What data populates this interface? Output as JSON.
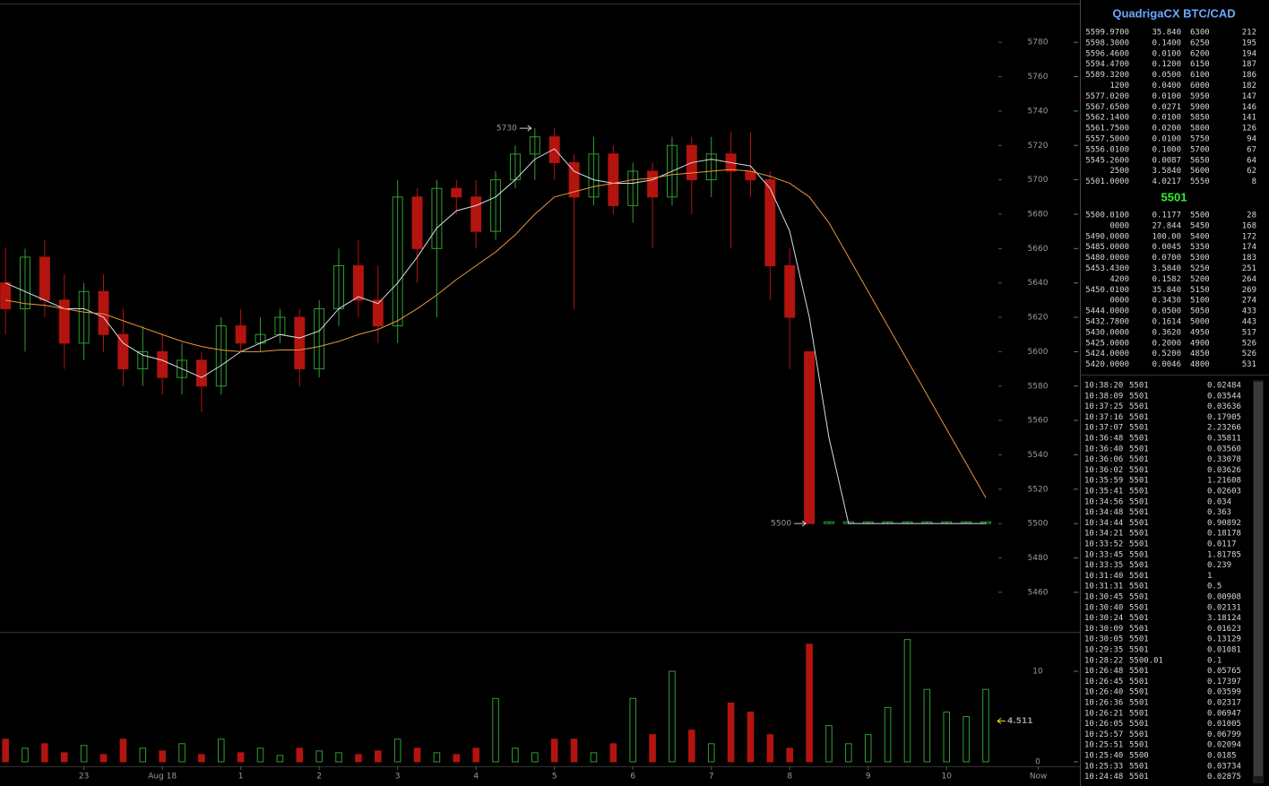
{
  "chart_data": [
    {
      "type": "candlestick",
      "x": [
        -2,
        -1.75,
        -1.5,
        -1.25,
        -1,
        -0.75,
        -0.5,
        -0.25,
        0,
        0.25,
        0.5,
        0.75,
        1,
        1.25,
        1.5,
        1.75,
        2,
        2.25,
        2.5,
        2.75,
        3,
        3.25,
        3.5,
        3.75,
        4,
        4.25,
        4.5,
        4.75,
        5,
        5.25,
        5.5,
        5.75,
        6,
        6.25,
        6.5,
        6.75,
        7,
        7.25,
        7.5,
        7.75,
        8,
        8.25,
        8.5,
        8.75,
        9,
        9.25,
        9.5,
        9.75,
        10,
        10.25,
        10.5
      ],
      "open": [
        5640,
        5625,
        5655,
        5630,
        5605,
        5635,
        5610,
        5590,
        5600,
        5585,
        5595,
        5580,
        5615,
        5605,
        5610,
        5620,
        5590,
        5625,
        5650,
        5630,
        5615,
        5690,
        5660,
        5695,
        5690,
        5670,
        5700,
        5715,
        5725,
        5710,
        5690,
        5715,
        5685,
        5705,
        5690,
        5720,
        5700,
        5715,
        5705,
        5700,
        5650,
        5600,
        5500,
        5500,
        5500,
        5500,
        5500,
        5500,
        5500,
        5500,
        5500
      ],
      "high": [
        5660,
        5660,
        5665,
        5645,
        5640,
        5645,
        5625,
        5615,
        5610,
        5605,
        5600,
        5620,
        5625,
        5620,
        5625,
        5625,
        5630,
        5660,
        5665,
        5650,
        5700,
        5695,
        5700,
        5700,
        5700,
        5705,
        5720,
        5730,
        5730,
        5715,
        5725,
        5720,
        5710,
        5710,
        5725,
        5725,
        5725,
        5728,
        5728,
        5705,
        5660,
        5600,
        5501,
        5501,
        5501,
        5501,
        5501,
        5501,
        5501,
        5501,
        5501
      ],
      "low": [
        5610,
        5600,
        5620,
        5590,
        5595,
        5600,
        5580,
        5580,
        5575,
        5575,
        5565,
        5575,
        5600,
        5600,
        5605,
        5580,
        5585,
        5615,
        5620,
        5605,
        5605,
        5640,
        5620,
        5680,
        5660,
        5665,
        5695,
        5700,
        5700,
        5625,
        5685,
        5680,
        5675,
        5660,
        5685,
        5680,
        5690,
        5660,
        5690,
        5630,
        5590,
        5500,
        5500,
        5500,
        5500,
        5500,
        5500,
        5500,
        5500,
        5500,
        5500
      ],
      "close": [
        5625,
        5655,
        5630,
        5605,
        5635,
        5610,
        5590,
        5600,
        5585,
        5595,
        5580,
        5615,
        5605,
        5610,
        5620,
        5590,
        5625,
        5650,
        5630,
        5615,
        5690,
        5660,
        5695,
        5690,
        5670,
        5700,
        5715,
        5725,
        5710,
        5690,
        5715,
        5685,
        5705,
        5690,
        5720,
        5700,
        5715,
        5705,
        5700,
        5650,
        5620,
        5500,
        5501,
        5501,
        5501,
        5501,
        5501,
        5501,
        5501,
        5501,
        5501
      ],
      "up_color": "#2f9e2f",
      "down_color": "#b3140f",
      "lines": [
        {
          "color": "#d6dde8",
          "values": [
            5640,
            5635,
            5630,
            5625,
            5625,
            5620,
            5605,
            5598,
            5595,
            5590,
            5585,
            5592,
            5600,
            5605,
            5610,
            5608,
            5612,
            5625,
            5632,
            5628,
            5640,
            5655,
            5672,
            5682,
            5685,
            5690,
            5700,
            5712,
            5718,
            5705,
            5700,
            5698,
            5698,
            5700,
            5705,
            5710,
            5712,
            5710,
            5708,
            5695,
            5670,
            5620,
            5550,
            5500,
            5500,
            5500,
            5500,
            5500,
            5500,
            5500,
            5500
          ]
        },
        {
          "color": "#e8963a",
          "values": [
            5630,
            5628,
            5627,
            5625,
            5623,
            5622,
            5618,
            5614,
            5610,
            5606,
            5603,
            5601,
            5600,
            5600,
            5601,
            5601,
            5603,
            5606,
            5610,
            5613,
            5618,
            5625,
            5633,
            5642,
            5650,
            5658,
            5668,
            5680,
            5690,
            5693,
            5696,
            5698,
            5700,
            5701,
            5703,
            5704,
            5705,
            5706,
            5705,
            5702,
            5698,
            5690,
            5675,
            5655,
            5635,
            5615,
            5595,
            5575,
            5555,
            5535,
            5515
          ]
        }
      ],
      "annotations": [
        {
          "x": 4.75,
          "value": 5730
        },
        {
          "x": 8.25,
          "value": 5500
        }
      ],
      "xlim": [
        -2.07,
        11.7
      ],
      "ylim": [
        5437,
        5802
      ],
      "yticks": [
        5460,
        5480,
        5500,
        5520,
        5540,
        5560,
        5580,
        5600,
        5620,
        5640,
        5660,
        5680,
        5700,
        5720,
        5740,
        5760,
        5780
      ],
      "xticks": [
        {
          "value": -1,
          "label": "23"
        },
        {
          "value": 0,
          "label": "Aug 18"
        },
        1,
        2,
        3,
        4,
        5,
        6,
        7,
        8,
        9,
        10,
        {
          "value": 11.17,
          "label": "Now"
        }
      ]
    },
    {
      "type": "bar",
      "x": [
        -2,
        -1.75,
        -1.5,
        -1.25,
        -1,
        -0.75,
        -0.5,
        -0.25,
        0,
        0.25,
        0.5,
        0.75,
        1,
        1.25,
        1.5,
        1.75,
        2,
        2.25,
        2.5,
        2.75,
        3,
        3.25,
        3.5,
        3.75,
        4,
        4.25,
        4.5,
        4.75,
        5,
        5.25,
        5.5,
        5.75,
        6,
        6.25,
        6.5,
        6.75,
        7,
        7.25,
        7.5,
        7.75,
        8,
        8.25,
        8.5,
        8.75,
        9,
        9.25,
        9.5,
        9.75,
        10,
        10.25,
        10.5
      ],
      "values": [
        2.5,
        1.5,
        2,
        1,
        1.8,
        0.8,
        2.5,
        1.5,
        1.2,
        2,
        0.8,
        2.5,
        1,
        1.5,
        0.7,
        1.5,
        1.2,
        1,
        0.8,
        1.2,
        2.5,
        1.5,
        1,
        0.8,
        1.5,
        7,
        1.5,
        1,
        2.5,
        2.5,
        1,
        2,
        7,
        3,
        10,
        3.5,
        2,
        6.5,
        5.5,
        3,
        1.5,
        13,
        4,
        2,
        3,
        6,
        13.5,
        8,
        5.5,
        5,
        8
      ],
      "current": 4.511,
      "current_color": "#e6d31a",
      "xlim": [
        -2.07,
        11.7
      ],
      "ylim": [
        0,
        14.06
      ],
      "yticks": [
        0,
        10
      ]
    }
  ],
  "order_book": {
    "title": "QuadrigaCX BTC/CAD",
    "asks": [
      [
        "5599.9700",
        "35.840",
        "6300",
        "212"
      ],
      [
        "5598.3000",
        "0.1400",
        "6250",
        "195"
      ],
      [
        "5596.4600",
        "0.0100",
        "6200",
        "194"
      ],
      [
        "5594.4700",
        "0.1200",
        "6150",
        "187"
      ],
      [
        "5589.3200",
        "0.0500",
        "6100",
        "186"
      ],
      [
        "1200",
        "0.0400",
        "6000",
        "182"
      ],
      [
        "5577.0200",
        "0.0100",
        "5950",
        "147"
      ],
      [
        "5567.6500",
        "0.0271",
        "5900",
        "146"
      ],
      [
        "5562.1400",
        "0.0100",
        "5850",
        "141"
      ],
      [
        "5561.7500",
        "0.0200",
        "5800",
        "126"
      ],
      [
        "5557.5000",
        "0.0100",
        "5750",
        "94"
      ],
      [
        "5556.0100",
        "0.1000",
        "5700",
        "67"
      ],
      [
        "5545.2600",
        "0.0087",
        "5650",
        "64"
      ],
      [
        "2500",
        "3.5840",
        "5600",
        "62"
      ],
      [
        "5501.0000",
        "4.0217",
        "5550",
        "8"
      ]
    ],
    "last": "5501",
    "bids": [
      [
        "5500.0100",
        "0.1177",
        "5500",
        "28"
      ],
      [
        "0000",
        "27.844",
        "5450",
        "168"
      ],
      [
        "5490.0000",
        "100.00",
        "5400",
        "172"
      ],
      [
        "5485.0000",
        "0.0045",
        "5350",
        "174"
      ],
      [
        "5480.0000",
        "0.0700",
        "5300",
        "183"
      ],
      [
        "5453.4300",
        "3.5840",
        "5250",
        "251"
      ],
      [
        "4200",
        "0.1582",
        "5200",
        "264"
      ],
      [
        "5450.0100",
        "35.840",
        "5150",
        "269"
      ],
      [
        "0000",
        "0.3430",
        "5100",
        "274"
      ],
      [
        "5444.0000",
        "0.0500",
        "5050",
        "433"
      ],
      [
        "5432.7800",
        "0.1614",
        "5000",
        "443"
      ],
      [
        "5430.0000",
        "0.3620",
        "4950",
        "517"
      ],
      [
        "5425.0000",
        "0.2000",
        "4900",
        "526"
      ],
      [
        "5424.0000",
        "0.5200",
        "4850",
        "526"
      ],
      [
        "5420.0000",
        "0.0046",
        "4800",
        "531"
      ]
    ]
  },
  "trades": {
    "rows": [
      [
        "10:38:20",
        "5501",
        "0.02484"
      ],
      [
        "10:38:09",
        "5501",
        "0.03544"
      ],
      [
        "10:37:25",
        "5501",
        "0.03636"
      ],
      [
        "10:37:16",
        "5501",
        "0.17905"
      ],
      [
        "10:37:07",
        "5501",
        "2.23266"
      ],
      [
        "10:36:48",
        "5501",
        "0.35811"
      ],
      [
        "10:36:40",
        "5501",
        "0.03560"
      ],
      [
        "10:36:06",
        "5501",
        "0.33078"
      ],
      [
        "10:36:02",
        "5501",
        "0.03626"
      ],
      [
        "10:35:59",
        "5501",
        "1.21608"
      ],
      [
        "10:35:41",
        "5501",
        "0.02603"
      ],
      [
        "10:34:56",
        "5501",
        "0.034"
      ],
      [
        "10:34:48",
        "5501",
        "0.363"
      ],
      [
        "10:34:44",
        "5501",
        "0.90892"
      ],
      [
        "10:34:21",
        "5501",
        "0.18178"
      ],
      [
        "10:33:52",
        "5501",
        "0.0117"
      ],
      [
        "10:33:45",
        "5501",
        "1.81785"
      ],
      [
        "10:33:35",
        "5501",
        "0.239"
      ],
      [
        "10:31:40",
        "5501",
        "1"
      ],
      [
        "10:31:31",
        "5501",
        "0.5"
      ],
      [
        "10:30:45",
        "5501",
        "0.00908"
      ],
      [
        "10:30:40",
        "5501",
        "0.02131"
      ],
      [
        "10:30:24",
        "5501",
        "3.18124"
      ],
      [
        "10:30:09",
        "5501",
        "0.01623"
      ],
      [
        "10:30:05",
        "5501",
        "0.13129"
      ],
      [
        "10:29:35",
        "5501",
        "0.01081"
      ],
      [
        "10:28:22",
        "5500.01",
        "0.1"
      ],
      [
        "10:26:48",
        "5501",
        "0.05765"
      ],
      [
        "10:26:45",
        "5501",
        "0.17397"
      ],
      [
        "10:26:40",
        "5501",
        "0.03599"
      ],
      [
        "10:26:36",
        "5501",
        "0.02317"
      ],
      [
        "10:26:21",
        "5501",
        "0.06947"
      ],
      [
        "10:26:05",
        "5501",
        "0.01005"
      ],
      [
        "10:25:57",
        "5501",
        "0.06799"
      ],
      [
        "10:25:51",
        "5501",
        "0.02094"
      ],
      [
        "10:25:40",
        "5500",
        "0.0185"
      ],
      [
        "10:25:33",
        "5501",
        "0.03734"
      ],
      [
        "10:24:48",
        "5501",
        "0.02875"
      ]
    ],
    "price_colors": [
      "#5fe05f",
      "#5fe05f",
      "#5fe05f",
      "#5fe05f",
      "#5fe05f",
      "#5fe05f",
      "#5fe05f",
      "#5fe05f",
      "#5fe05f",
      "#5fe05f",
      "#5fe05f",
      "#5fe05f",
      "#5fe05f",
      "#5fe05f",
      "#5fe05f",
      "#5fe05f",
      "#5fe05f",
      "#5fe05f",
      "#5fe05f",
      "#5fe05f",
      "#5fe05f",
      "#5fe05f",
      "#5fe05f",
      "#5fe05f",
      "#5fe05f",
      "#5fe05f",
      "#ff4a4a",
      "#5fe05f",
      "#5fe05f",
      "#5fe05f",
      "#5fe05f",
      "#5fe05f",
      "#5fe05f",
      "#5fe05f",
      "#5fe05f",
      "#ff4a4a",
      "#5fe05f",
      "#5fe05f"
    ]
  }
}
